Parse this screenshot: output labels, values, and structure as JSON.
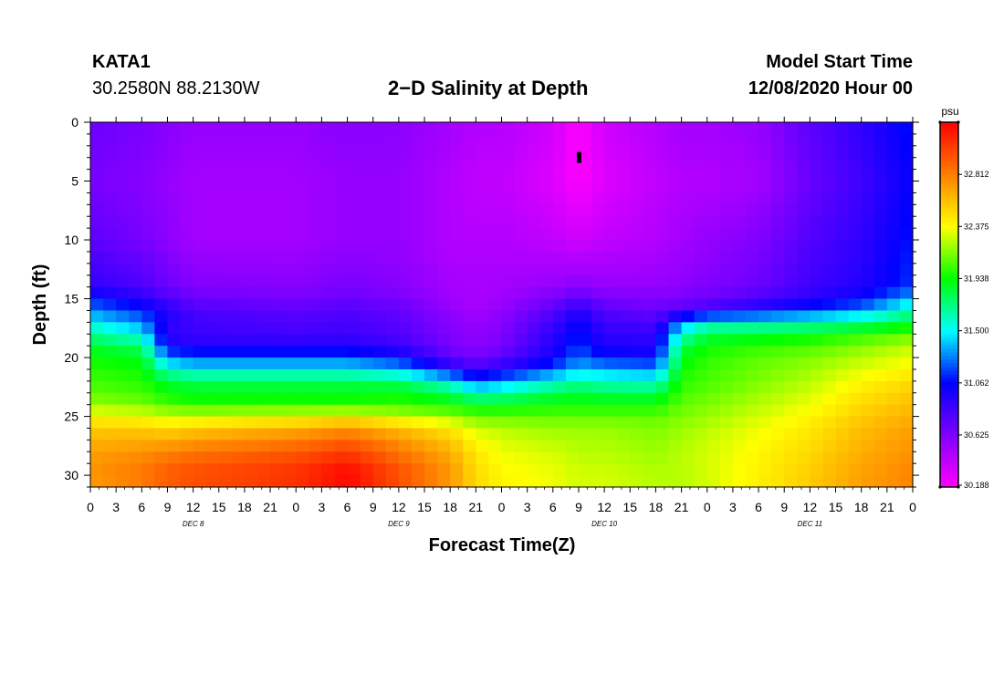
{
  "header": {
    "station_id": "KATA1",
    "coordinates": "30.2580N 88.2130W",
    "title": "2−D Salinity at Depth",
    "model_start_label": "Model Start Time",
    "model_start_value": "12/08/2020 Hour 00"
  },
  "chart_data": {
    "type": "heatmap",
    "title": "2−D Salinity at Depth",
    "xlabel": "Forecast Time(Z)",
    "ylabel": "Depth (ft)",
    "x_range_hours": [
      0,
      96
    ],
    "y_range_ft": [
      0,
      31
    ],
    "y_ticks": [
      0,
      5,
      10,
      15,
      20,
      25,
      30
    ],
    "x_tick_labels": [
      "0",
      "3",
      "6",
      "9",
      "12",
      "15",
      "18",
      "21",
      "0",
      "3",
      "6",
      "9",
      "12",
      "15",
      "18",
      "21",
      "0",
      "3",
      "6",
      "9",
      "12",
      "15",
      "18",
      "21",
      "0",
      "3",
      "6",
      "9",
      "12",
      "15",
      "18",
      "21",
      "0"
    ],
    "day_labels": [
      {
        "label": "DEC 8",
        "hour": 12
      },
      {
        "label": "DEC 9",
        "hour": 36
      },
      {
        "label": "DEC 10",
        "hour": 60
      },
      {
        "label": "DEC 11",
        "hour": 84
      }
    ],
    "colorbar": {
      "unit": "psu",
      "min": 30.188,
      "max": 33.25,
      "tick_values": [
        30.188,
        30.625,
        31.062,
        31.5,
        31.938,
        32.375,
        32.812
      ],
      "tick_labels": [
        "30.188",
        "30.625",
        "31.062",
        "31.500",
        "31.938",
        "32.375",
        "32.812"
      ],
      "colors": [
        "#ff00ff",
        "#7f00ff",
        "#0000ff",
        "#00ffff",
        "#00ff00",
        "#ffff00",
        "#ff7f00",
        "#ff0000"
      ]
    },
    "marker": {
      "hour": 57,
      "depth_ft": 3
    },
    "cross_section": {
      "hours": [
        0,
        6,
        9,
        12,
        24,
        30,
        36,
        42,
        45,
        48,
        54,
        57,
        60,
        66,
        69,
        72,
        78,
        84,
        90,
        96
      ],
      "depths_ft": [
        0,
        5,
        10,
        14,
        15,
        16,
        17,
        18,
        19,
        20,
        21,
        22,
        23,
        24,
        25,
        26,
        28,
        30,
        31
      ],
      "salinity_psu": [
        [
          30.7,
          30.65,
          30.6,
          30.55,
          30.55,
          30.6,
          30.58,
          30.5,
          30.45,
          30.45,
          30.35,
          30.19,
          30.35,
          30.45,
          30.5,
          30.5,
          30.55,
          30.75,
          30.9,
          31.1
        ],
        [
          30.65,
          30.6,
          30.55,
          30.5,
          30.5,
          30.55,
          30.55,
          30.45,
          30.4,
          30.4,
          30.3,
          30.19,
          30.3,
          30.4,
          30.45,
          30.45,
          30.5,
          30.7,
          30.85,
          31.05
        ],
        [
          30.75,
          30.65,
          30.58,
          30.5,
          30.5,
          30.55,
          30.55,
          30.45,
          30.45,
          30.45,
          30.4,
          30.35,
          30.4,
          30.45,
          30.5,
          30.55,
          30.62,
          30.78,
          30.9,
          31.1
        ],
        [
          30.9,
          30.8,
          30.7,
          30.62,
          30.6,
          30.65,
          30.6,
          30.5,
          30.48,
          30.5,
          30.55,
          30.6,
          30.55,
          30.55,
          30.58,
          30.62,
          30.7,
          30.85,
          30.95,
          31.15
        ],
        [
          31.1,
          30.95,
          30.8,
          30.7,
          30.65,
          30.7,
          30.65,
          30.52,
          30.48,
          30.52,
          30.65,
          30.75,
          30.65,
          30.62,
          30.65,
          30.7,
          30.8,
          30.92,
          31.05,
          31.4
        ],
        [
          31.3,
          31.1,
          30.95,
          30.8,
          30.75,
          30.78,
          30.72,
          30.56,
          30.5,
          30.55,
          30.75,
          30.95,
          30.75,
          30.7,
          30.75,
          30.85,
          31.0,
          31.15,
          31.3,
          31.65
        ],
        [
          31.5,
          31.3,
          30.95,
          30.85,
          30.8,
          30.82,
          30.76,
          30.6,
          30.55,
          30.6,
          30.85,
          31.05,
          30.85,
          30.8,
          31.3,
          31.55,
          31.55,
          31.6,
          31.7,
          31.85
        ],
        [
          31.7,
          31.5,
          30.9,
          30.85,
          30.82,
          30.85,
          30.78,
          30.62,
          30.56,
          30.62,
          30.9,
          31.1,
          30.9,
          30.88,
          31.55,
          31.8,
          31.85,
          31.9,
          32.0,
          32.1
        ],
        [
          31.85,
          31.75,
          31.0,
          30.95,
          30.95,
          30.95,
          30.88,
          30.65,
          30.58,
          30.65,
          30.95,
          31.15,
          30.95,
          30.95,
          31.8,
          31.95,
          32.0,
          32.05,
          32.15,
          32.25
        ],
        [
          31.95,
          31.9,
          31.3,
          31.2,
          31.2,
          31.2,
          31.05,
          30.75,
          30.65,
          30.75,
          31.0,
          31.25,
          31.1,
          31.05,
          31.9,
          32.0,
          32.1,
          32.15,
          32.25,
          32.35
        ],
        [
          32.0,
          31.95,
          31.6,
          31.5,
          31.5,
          31.5,
          31.4,
          31.0,
          30.85,
          30.95,
          31.2,
          31.4,
          31.35,
          31.3,
          31.95,
          32.05,
          32.12,
          32.2,
          32.32,
          32.4
        ],
        [
          32.05,
          32.0,
          31.85,
          31.8,
          31.8,
          31.8,
          31.75,
          31.5,
          31.2,
          31.3,
          31.55,
          31.65,
          31.6,
          31.55,
          32.0,
          32.05,
          32.15,
          32.25,
          32.4,
          32.5
        ],
        [
          32.1,
          32.05,
          31.95,
          31.9,
          31.9,
          31.9,
          31.95,
          31.8,
          31.6,
          31.65,
          31.8,
          31.85,
          31.8,
          31.8,
          32.05,
          32.1,
          32.2,
          32.3,
          32.45,
          32.55
        ],
        [
          32.2,
          32.15,
          32.05,
          32.0,
          32.0,
          32.0,
          32.0,
          31.95,
          31.9,
          31.9,
          31.95,
          31.95,
          31.95,
          31.95,
          32.1,
          32.15,
          32.25,
          32.35,
          32.5,
          32.6
        ],
        [
          32.4,
          32.35,
          32.3,
          32.3,
          32.35,
          32.4,
          32.3,
          32.2,
          32.1,
          32.1,
          32.1,
          32.1,
          32.1,
          32.1,
          32.15,
          32.2,
          32.3,
          32.4,
          32.55,
          32.65
        ],
        [
          32.55,
          32.55,
          32.5,
          32.55,
          32.65,
          32.75,
          32.6,
          32.45,
          32.3,
          32.25,
          32.2,
          32.2,
          32.2,
          32.15,
          32.2,
          32.25,
          32.35,
          32.45,
          32.6,
          32.7
        ],
        [
          32.7,
          32.75,
          32.8,
          32.85,
          32.95,
          33.05,
          32.85,
          32.65,
          32.45,
          32.35,
          32.3,
          32.25,
          32.25,
          32.2,
          32.25,
          32.3,
          32.4,
          32.5,
          32.65,
          32.75
        ],
        [
          32.75,
          32.85,
          32.95,
          33.0,
          33.1,
          33.25,
          33.0,
          32.75,
          32.5,
          32.4,
          32.35,
          32.3,
          32.3,
          32.25,
          32.25,
          32.3,
          32.42,
          32.55,
          32.7,
          32.8
        ],
        [
          32.7,
          32.8,
          32.9,
          32.95,
          33.05,
          33.2,
          32.95,
          32.7,
          32.5,
          32.4,
          32.35,
          32.3,
          32.3,
          32.25,
          32.25,
          32.3,
          32.42,
          32.55,
          32.7,
          32.8
        ]
      ]
    }
  }
}
